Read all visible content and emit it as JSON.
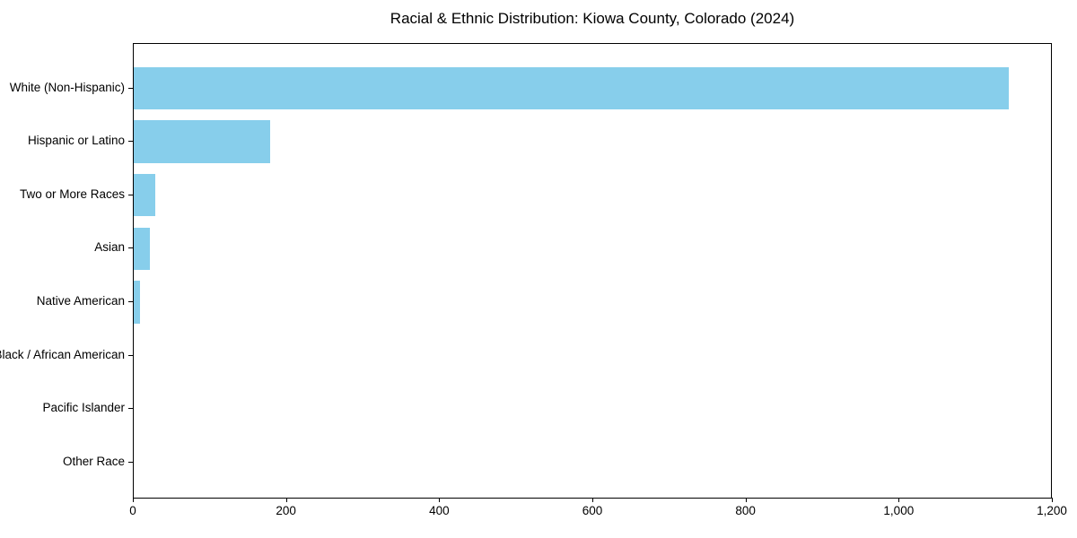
{
  "chart_data": {
    "type": "bar",
    "orientation": "horizontal",
    "title": "Racial & Ethnic Distribution: Kiowa County, Colorado (2024)",
    "categories": [
      "White (Non-Hispanic)",
      "Hispanic or Latino",
      "Two or More Races",
      "Asian",
      "Native American",
      "Black / African American",
      "Pacific Islander",
      "Other Race"
    ],
    "values": [
      1143,
      178,
      28,
      21,
      8,
      0,
      0,
      0
    ],
    "xlabel": "",
    "ylabel": "",
    "xlim": [
      0,
      1200
    ],
    "x_ticks": [
      {
        "value": 0,
        "label": "0"
      },
      {
        "value": 200,
        "label": "200"
      },
      {
        "value": 400,
        "label": "400"
      },
      {
        "value": 600,
        "label": "600"
      },
      {
        "value": 800,
        "label": "800"
      },
      {
        "value": 1000,
        "label": "1,000"
      },
      {
        "value": 1200,
        "label": "1,200"
      }
    ],
    "bar_color": "#87CEEB",
    "spine_color": "#000000",
    "grid": false,
    "legend_position": "none"
  }
}
